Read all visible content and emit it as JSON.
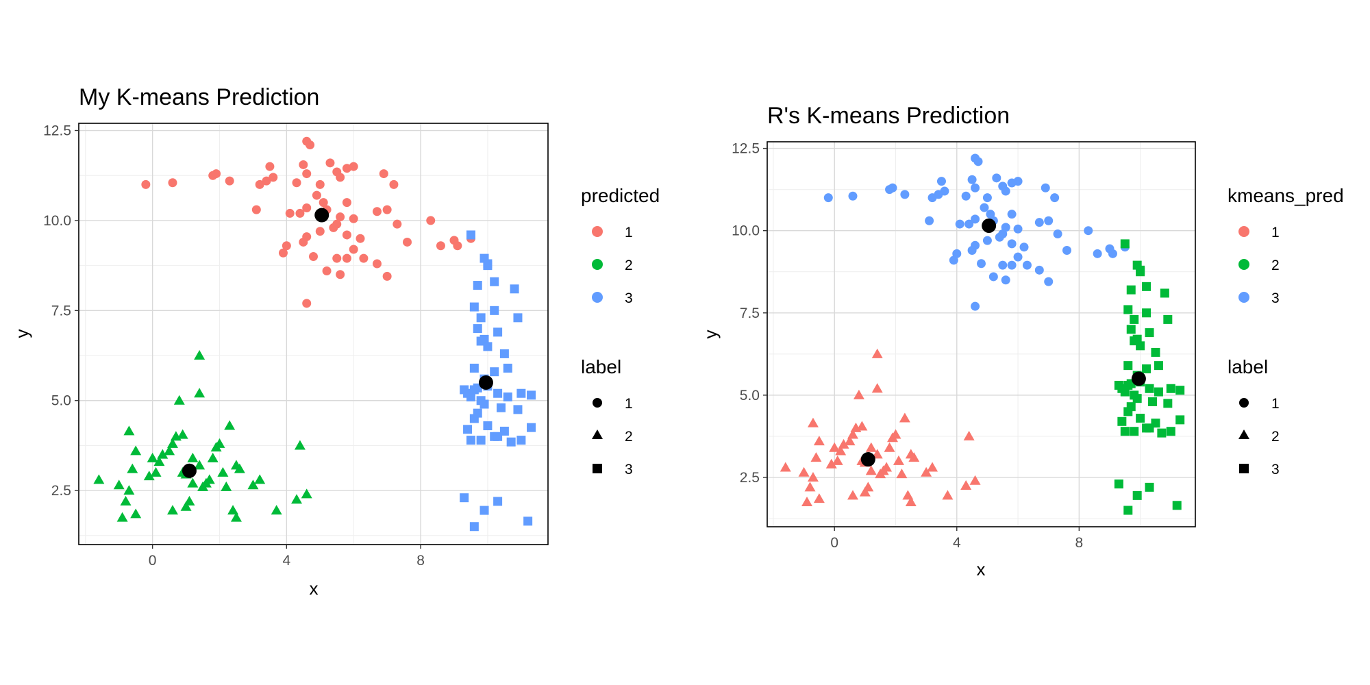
{
  "colors": {
    "1": "#F8766D",
    "2": "#00BA38",
    "3": "#619CFF",
    "centroid": "#000000"
  },
  "chart_data": [
    {
      "type": "scatter",
      "title": "My K-means Prediction",
      "xlabel": "x",
      "ylabel": "y",
      "xlim": [
        -2.2,
        11.8
      ],
      "ylim": [
        1.0,
        12.7
      ],
      "xticks": [
        0,
        4,
        8
      ],
      "xtick_labels": [
        "0",
        "4",
        "8"
      ],
      "yticks": [
        2.5,
        5.0,
        7.5,
        10.0,
        12.5
      ],
      "ytick_labels": [
        "2.5",
        "5.0",
        "7.5",
        "10.0",
        "12.5"
      ],
      "color_legend": {
        "title": "predicted",
        "entries": [
          "1",
          "2",
          "3"
        ]
      },
      "shape_legend": {
        "title": "label",
        "entries": [
          "1",
          "2",
          "3"
        ]
      },
      "color_map": {
        "1": "1",
        "2": "2",
        "3": "3"
      },
      "centroids": [
        [
          1.1,
          3.05
        ],
        [
          5.05,
          10.15
        ],
        [
          9.95,
          5.5
        ]
      ]
    },
    {
      "type": "scatter",
      "title": "R's K-means Prediction",
      "xlabel": "x",
      "ylabel": "y",
      "xlim": [
        -2.2,
        11.8
      ],
      "ylim": [
        1.0,
        12.7
      ],
      "xticks": [
        0,
        4,
        8
      ],
      "xtick_labels": [
        "0",
        "4",
        "8"
      ],
      "yticks": [
        2.5,
        5.0,
        7.5,
        10.0,
        12.5
      ],
      "ytick_labels": [
        "2.5",
        "5.0",
        "7.5",
        "10.0",
        "12.5"
      ],
      "color_legend": {
        "title": "kmeans_pred",
        "entries": [
          "1",
          "2",
          "3"
        ]
      },
      "shape_legend": {
        "title": "label",
        "entries": [
          "1",
          "2",
          "3"
        ]
      },
      "color_map": {
        "1": "3",
        "2": "1",
        "3": "2"
      },
      "centroids": [
        [
          1.1,
          3.05
        ],
        [
          5.05,
          10.15
        ],
        [
          9.95,
          5.5
        ]
      ]
    }
  ],
  "points": {
    "label1": [
      [
        -0.2,
        11.0
      ],
      [
        0.6,
        11.05
      ],
      [
        1.9,
        11.3
      ],
      [
        2.3,
        11.1
      ],
      [
        3.6,
        11.2
      ],
      [
        3.5,
        11.5
      ],
      [
        4.6,
        12.2
      ],
      [
        4.7,
        12.1
      ],
      [
        4.5,
        11.55
      ],
      [
        4.6,
        11.3
      ],
      [
        5.5,
        11.35
      ],
      [
        6.0,
        11.5
      ],
      [
        5.3,
        11.6
      ],
      [
        5.8,
        11.45
      ],
      [
        3.4,
        11.1
      ],
      [
        1.8,
        11.25
      ],
      [
        3.2,
        11.0
      ],
      [
        4.3,
        11.05
      ],
      [
        5.0,
        11.0
      ],
      [
        5.6,
        11.2
      ],
      [
        6.9,
        11.3
      ],
      [
        7.2,
        11.0
      ],
      [
        5.8,
        10.5
      ],
      [
        3.1,
        10.3
      ],
      [
        4.1,
        10.2
      ],
      [
        4.6,
        10.35
      ],
      [
        4.4,
        10.2
      ],
      [
        5.2,
        10.3
      ],
      [
        5.6,
        10.1
      ],
      [
        6.0,
        10.05
      ],
      [
        6.7,
        10.25
      ],
      [
        7.0,
        10.3
      ],
      [
        8.3,
        10.0
      ],
      [
        9.5,
        9.5
      ],
      [
        9.1,
        9.3
      ],
      [
        9.0,
        9.45
      ],
      [
        8.6,
        9.3
      ],
      [
        7.6,
        9.4
      ],
      [
        6.2,
        9.5
      ],
      [
        5.8,
        9.6
      ],
      [
        5.4,
        9.8
      ],
      [
        5.0,
        9.7
      ],
      [
        4.6,
        9.55
      ],
      [
        4.5,
        9.4
      ],
      [
        4.0,
        9.3
      ],
      [
        3.9,
        9.1
      ],
      [
        4.8,
        9.0
      ],
      [
        5.5,
        8.95
      ],
      [
        5.8,
        8.95
      ],
      [
        6.3,
        8.95
      ],
      [
        6.7,
        8.8
      ],
      [
        5.2,
        8.6
      ],
      [
        5.6,
        8.5
      ],
      [
        7.0,
        8.45
      ],
      [
        4.6,
        7.7
      ],
      [
        5.5,
        9.9
      ],
      [
        7.3,
        9.9
      ],
      [
        6.0,
        9.2
      ],
      [
        4.9,
        10.7
      ],
      [
        5.1,
        10.5
      ]
    ],
    "label2": [
      [
        -1.6,
        2.8
      ],
      [
        -1.0,
        2.65
      ],
      [
        -0.7,
        2.5
      ],
      [
        -0.5,
        1.85
      ],
      [
        -0.9,
        1.75
      ],
      [
        -0.8,
        2.2
      ],
      [
        -0.6,
        3.1
      ],
      [
        -0.5,
        3.6
      ],
      [
        -0.7,
        4.15
      ],
      [
        0.0,
        3.4
      ],
      [
        0.1,
        3.0
      ],
      [
        0.3,
        3.5
      ],
      [
        0.5,
        3.6
      ],
      [
        0.6,
        3.8
      ],
      [
        0.7,
        4.0
      ],
      [
        0.9,
        4.05
      ],
      [
        1.0,
        2.05
      ],
      [
        1.1,
        2.2
      ],
      [
        1.2,
        3.4
      ],
      [
        0.9,
        3.0
      ],
      [
        1.4,
        3.2
      ],
      [
        1.6,
        2.7
      ],
      [
        1.7,
        2.8
      ],
      [
        1.8,
        3.4
      ],
      [
        1.9,
        3.7
      ],
      [
        2.0,
        3.8
      ],
      [
        2.1,
        3.0
      ],
      [
        2.2,
        2.6
      ],
      [
        2.3,
        4.3
      ],
      [
        2.5,
        3.2
      ],
      [
        2.6,
        3.1
      ],
      [
        2.4,
        1.95
      ],
      [
        2.5,
        1.75
      ],
      [
        3.0,
        2.65
      ],
      [
        3.2,
        2.8
      ],
      [
        3.7,
        1.95
      ],
      [
        4.4,
        3.75
      ],
      [
        4.3,
        2.25
      ],
      [
        4.6,
        2.4
      ],
      [
        1.4,
        5.2
      ],
      [
        0.8,
        5.0
      ],
      [
        1.4,
        6.25
      ],
      [
        0.6,
        1.95
      ],
      [
        1.2,
        2.7
      ],
      [
        1.5,
        2.6
      ],
      [
        0.2,
        3.3
      ],
      [
        -0.1,
        2.9
      ],
      [
        1.0,
        2.95
      ]
    ],
    "label3": [
      [
        9.5,
        9.6
      ],
      [
        9.9,
        8.95
      ],
      [
        10.0,
        8.8
      ],
      [
        10.0,
        8.75
      ],
      [
        10.2,
        8.3
      ],
      [
        9.7,
        8.2
      ],
      [
        10.8,
        8.1
      ],
      [
        9.6,
        7.6
      ],
      [
        10.2,
        7.5
      ],
      [
        9.8,
        7.3
      ],
      [
        10.9,
        7.3
      ],
      [
        9.7,
        7.0
      ],
      [
        10.3,
        6.9
      ],
      [
        9.9,
        6.7
      ],
      [
        9.8,
        6.65
      ],
      [
        10.0,
        6.5
      ],
      [
        10.5,
        6.3
      ],
      [
        9.6,
        5.9
      ],
      [
        10.6,
        5.9
      ],
      [
        10.2,
        5.8
      ],
      [
        9.3,
        5.3
      ],
      [
        9.4,
        5.2
      ],
      [
        9.6,
        5.3
      ],
      [
        9.7,
        5.35
      ],
      [
        9.5,
        5.1
      ],
      [
        9.8,
        5.0
      ],
      [
        10.3,
        5.2
      ],
      [
        10.6,
        5.1
      ],
      [
        11.0,
        5.2
      ],
      [
        11.3,
        5.15
      ],
      [
        9.9,
        4.9
      ],
      [
        10.4,
        4.8
      ],
      [
        10.9,
        4.75
      ],
      [
        9.6,
        4.5
      ],
      [
        10.0,
        4.3
      ],
      [
        10.5,
        4.15
      ],
      [
        11.3,
        4.25
      ],
      [
        9.4,
        4.2
      ],
      [
        10.2,
        4.0
      ],
      [
        10.3,
        4.0
      ],
      [
        9.8,
        3.9
      ],
      [
        11.0,
        3.9
      ],
      [
        9.5,
        3.9
      ],
      [
        10.7,
        3.85
      ],
      [
        9.3,
        2.3
      ],
      [
        10.3,
        2.2
      ],
      [
        9.9,
        1.95
      ],
      [
        9.6,
        1.5
      ],
      [
        11.2,
        1.65
      ],
      [
        9.9,
        5.6
      ],
      [
        10.0,
        5.4
      ],
      [
        9.7,
        4.65
      ]
    ]
  }
}
